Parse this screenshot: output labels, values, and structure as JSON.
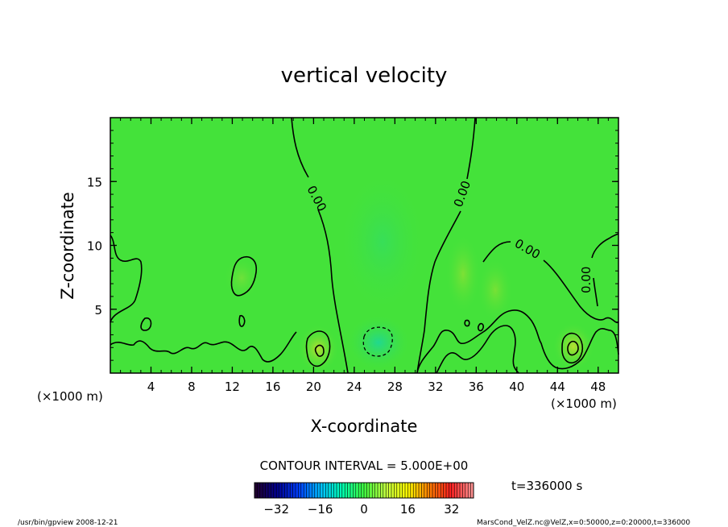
{
  "chart_data": {
    "type": "heatmap",
    "title": "vertical velocity",
    "xlabel": "X-coordinate",
    "ylabel": "Z-coordinate",
    "x_unit": "(×1000 m)",
    "xlim": [
      0,
      50
    ],
    "ylim": [
      0,
      20
    ],
    "x_ticks": [
      4,
      8,
      12,
      16,
      20,
      24,
      28,
      32,
      36,
      40,
      44,
      48
    ],
    "y_ticks": [
      5,
      10,
      15
    ],
    "contour_interval_text": "CONTOUR INTERVAL = 5.000E+00",
    "contour_labels": [
      "0.00",
      "0.00",
      "0.00",
      "0.00"
    ],
    "time_label": "t=336000 s",
    "colorbar": {
      "range": [
        -40,
        40
      ],
      "ticks": [
        -32,
        -16,
        0,
        16,
        32
      ],
      "colors": [
        "#200030",
        "#000090",
        "#0040ff",
        "#00c0ff",
        "#00ffb0",
        "#40ff40",
        "#c0ff40",
        "#ffff00",
        "#ff8000",
        "#ff2020",
        "#ff9090"
      ]
    },
    "background_color": "#44e23a"
  },
  "footer": {
    "left": "/usr/bin/gpview   2008-12-21",
    "right": "MarsCond_VelZ.nc@VelZ,x=0:50000,z=0:20000,t=336000"
  }
}
